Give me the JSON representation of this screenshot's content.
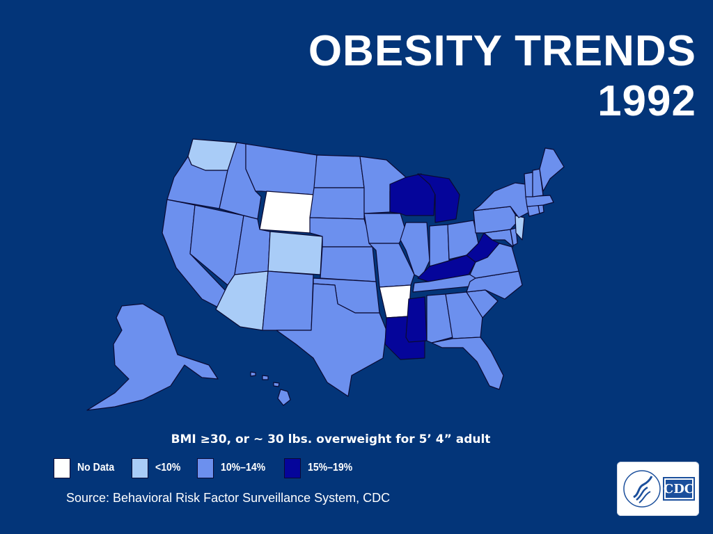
{
  "title": {
    "line1": "OBESITY TRENDS",
    "line2": "1992"
  },
  "caption": "BMI ≥30, or ~ 30 lbs. overweight for 5’ 4” adult",
  "legend": [
    {
      "key": "nodata",
      "label": "No Data",
      "color": "#ffffff"
    },
    {
      "key": "lt10",
      "label": "<10%",
      "color": "#a9ccf7"
    },
    {
      "key": "10to14",
      "label": "10%–14%",
      "color": "#6c90ee"
    },
    {
      "key": "15to19",
      "label": "15%–19%",
      "color": "#05059a"
    }
  ],
  "source": "Source: Behavioral Risk Factor Surveillance System, CDC",
  "logo": {
    "text": "CDC"
  },
  "map_data": {
    "year": "1992",
    "states": {
      "WA": "lt10",
      "OR": "10to14",
      "CA": "10to14",
      "ID": "10to14",
      "NV": "10to14",
      "MT": "10to14",
      "WY": "nodata",
      "UT": "10to14",
      "CO": "lt10",
      "AZ": "lt10",
      "NM": "10to14",
      "ND": "10to14",
      "SD": "10to14",
      "NE": "10to14",
      "KS": "10to14",
      "OK": "10to14",
      "TX": "10to14",
      "MN": "10to14",
      "IA": "10to14",
      "MO": "10to14",
      "AR": "nodata",
      "LA": "15to19",
      "WI": "15to19",
      "IL": "10to14",
      "MI": "15to19",
      "IN": "10to14",
      "OH": "10to14",
      "KY": "15to19",
      "TN": "10to14",
      "MS": "15to19",
      "AL": "10to14",
      "GA": "10to14",
      "FL": "10to14",
      "SC": "10to14",
      "NC": "10to14",
      "VA": "10to14",
      "WV": "15to19",
      "MD": "10to14",
      "DE": "10to14",
      "PA": "10to14",
      "NJ": "lt10",
      "NY": "10to14",
      "CT": "10to14",
      "RI": "10to14",
      "MA": "10to14",
      "VT": "10to14",
      "NH": "10to14",
      "ME": "10to14",
      "AK": "10to14",
      "HI": "10to14"
    }
  }
}
